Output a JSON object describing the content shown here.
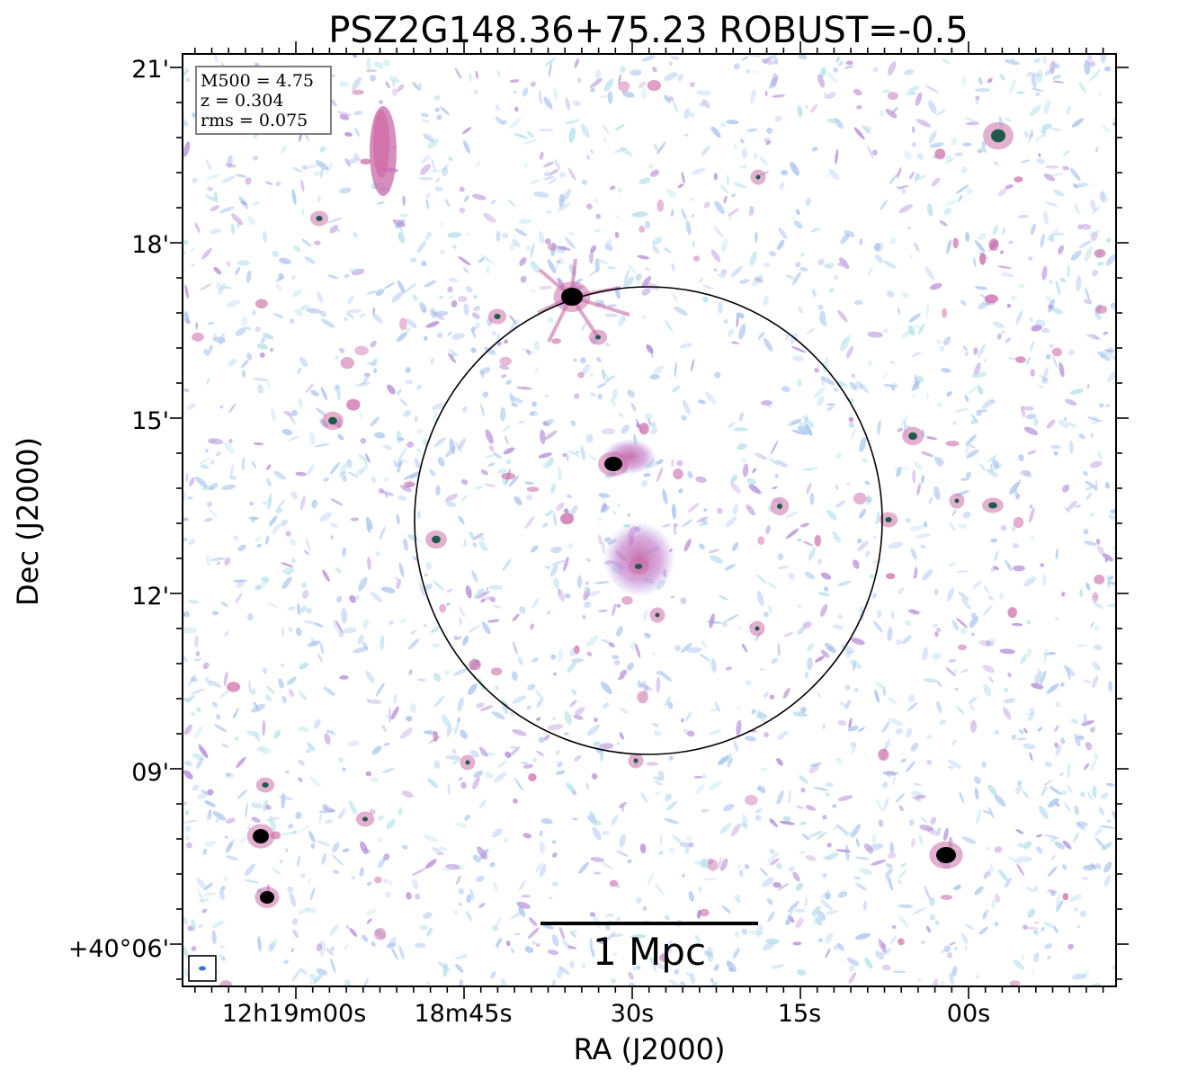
{
  "title": "PSZ2G148.36+75.23 ROBUST=-0.5",
  "axes": {
    "xlabel": "RA (J2000)",
    "ylabel": "Dec (J2000)",
    "x_ticks": [
      "12h19m00s",
      "18m45s",
      "30s",
      "15s",
      "00s"
    ],
    "y_ticks": [
      "21'",
      "18'",
      "15'",
      "12'",
      "09'",
      "+40°06'"
    ]
  },
  "info_box": {
    "line1": "M500 = 4.75",
    "line2": "z = 0.304",
    "line3": "rms = 0.075"
  },
  "scale_bar": {
    "label": "1 Mpc"
  },
  "colors": {
    "noise_blue": "#aac4ee",
    "noise_cyan": "#b6e0ea",
    "emission_pink": "#cc6fa8",
    "emission_purple": "#b28ad6",
    "core_green": "#1f5a4a",
    "core_black": "#000000",
    "beam": "#3a72c4"
  }
}
